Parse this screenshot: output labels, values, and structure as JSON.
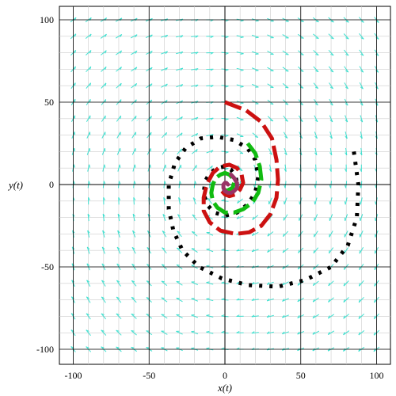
{
  "chart_data": {
    "type": "line",
    "subtype": "phase-portrait-with-direction-field",
    "xlabel": "x(t)",
    "ylabel": "y(t)",
    "xlim": [
      -110,
      110
    ],
    "ylim": [
      -110,
      110
    ],
    "x_ticks": [
      -100,
      -50,
      0,
      50,
      100
    ],
    "y_ticks": [
      -100,
      -50,
      0,
      50,
      100
    ],
    "x_tick_labels": [
      "-100",
      "-50",
      "0",
      "50",
      "100"
    ],
    "y_tick_labels": [
      "-100",
      "-50",
      "0",
      "50",
      "100"
    ],
    "grid": true,
    "legend": "none",
    "field": {
      "color": "#40e0d0",
      "system": {
        "dx": "-0.1*x + y",
        "dy": "-x - 0.1*y"
      },
      "step": 10
    },
    "series": [
      {
        "color": "#000000",
        "style": "dotted",
        "points": [
          [
            85,
            20
          ],
          [
            88,
            0
          ],
          [
            87,
            -20
          ],
          [
            81,
            -37
          ],
          [
            70,
            -50
          ],
          [
            53,
            -58
          ],
          [
            35,
            -62
          ],
          [
            15,
            -61
          ],
          [
            -2,
            -57
          ],
          [
            -17,
            -50
          ],
          [
            -28,
            -40
          ],
          [
            -34,
            -28
          ],
          [
            -37,
            -15
          ],
          [
            -37,
            0
          ],
          [
            -33,
            13
          ],
          [
            -26,
            22
          ],
          [
            -16,
            28
          ],
          [
            -5,
            29
          ],
          [
            6,
            27
          ],
          [
            15,
            22
          ],
          [
            20,
            15
          ],
          [
            22,
            5
          ],
          [
            20,
            -5
          ],
          [
            15,
            -12
          ],
          [
            8,
            -17
          ],
          [
            0,
            -19
          ],
          [
            -7,
            -17
          ],
          [
            -12,
            -12
          ],
          [
            -14,
            -5
          ],
          [
            -13,
            2
          ],
          [
            -10,
            7
          ],
          [
            -5,
            10
          ],
          [
            0,
            11
          ],
          [
            4,
            9
          ],
          [
            7,
            5
          ],
          [
            8,
            1
          ],
          [
            6,
            -2
          ],
          [
            3,
            -4
          ],
          [
            0,
            -4
          ],
          [
            -2,
            -3
          ]
        ]
      },
      {
        "color": "#cc1111",
        "style": "dashed",
        "points": [
          [
            0,
            50
          ],
          [
            14,
            45
          ],
          [
            24,
            38
          ],
          [
            31,
            28
          ],
          [
            34,
            15
          ],
          [
            35,
            3
          ],
          [
            34,
            -8
          ],
          [
            30,
            -18
          ],
          [
            24,
            -25
          ],
          [
            16,
            -29
          ],
          [
            7,
            -30
          ],
          [
            -3,
            -28
          ],
          [
            -10,
            -23
          ],
          [
            -14,
            -16
          ],
          [
            -14,
            -8
          ],
          [
            -12,
            0
          ],
          [
            -8,
            7
          ],
          [
            -3,
            11
          ],
          [
            3,
            12
          ],
          [
            8,
            10
          ],
          [
            11,
            6
          ],
          [
            12,
            1
          ],
          [
            10,
            -3
          ],
          [
            7,
            -6
          ],
          [
            3,
            -7
          ],
          [
            0,
            -6
          ],
          [
            -2,
            -4
          ]
        ]
      },
      {
        "color": "#11bb11",
        "style": "dashed",
        "points": [
          [
            15,
            25
          ],
          [
            20,
            19
          ],
          [
            23,
            11
          ],
          [
            24,
            3
          ],
          [
            22,
            -5
          ],
          [
            18,
            -11
          ],
          [
            12,
            -15
          ],
          [
            6,
            -17
          ],
          [
            0,
            -17
          ],
          [
            -5,
            -14
          ],
          [
            -8,
            -10
          ],
          [
            -9,
            -5
          ],
          [
            -8,
            0
          ],
          [
            -6,
            4
          ],
          [
            -3,
            6
          ],
          [
            0,
            7
          ],
          [
            3,
            6
          ],
          [
            5,
            4
          ],
          [
            6,
            1
          ],
          [
            5,
            -2
          ],
          [
            3,
            -3
          ],
          [
            1,
            -4
          ],
          [
            0,
            -3
          ]
        ]
      },
      {
        "color": "#993366",
        "style": "solid",
        "points": [
          [
            4,
            6
          ],
          [
            6,
            4
          ],
          [
            8,
            1
          ],
          [
            8,
            -2
          ],
          [
            6,
            -4
          ],
          [
            4,
            -5
          ],
          [
            2,
            -5
          ],
          [
            0,
            -4
          ],
          [
            -1,
            -2
          ],
          [
            -1,
            0
          ],
          [
            0,
            1
          ],
          [
            1,
            1
          ],
          [
            2,
            0
          ]
        ]
      }
    ]
  }
}
